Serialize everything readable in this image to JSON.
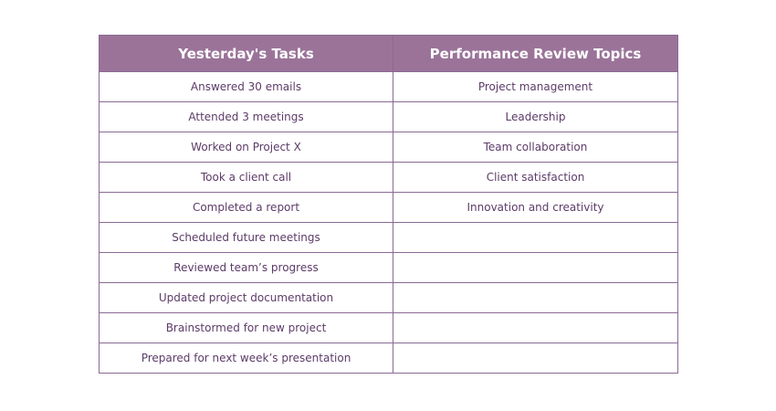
{
  "table": {
    "headers": [
      "Yesterday's Tasks",
      "Performance Review Topics"
    ],
    "rows": [
      [
        "Answered 30 emails",
        "Project management"
      ],
      [
        "Attended 3 meetings",
        "Leadership"
      ],
      [
        "Worked on Project X",
        "Team collaboration"
      ],
      [
        "Took a client call",
        "Client satisfaction"
      ],
      [
        "Completed a report",
        "Innovation and creativity"
      ],
      [
        "Scheduled future meetings",
        ""
      ],
      [
        "Reviewed team’s progress",
        ""
      ],
      [
        "Updated project documentation",
        ""
      ],
      [
        "Brainstormed for new project",
        ""
      ],
      [
        "Prepared for next week’s presentation",
        ""
      ]
    ]
  },
  "colors": {
    "header_bg": "#9b7399",
    "border": "#8a6a94",
    "cell_text": "#5c3b68"
  }
}
